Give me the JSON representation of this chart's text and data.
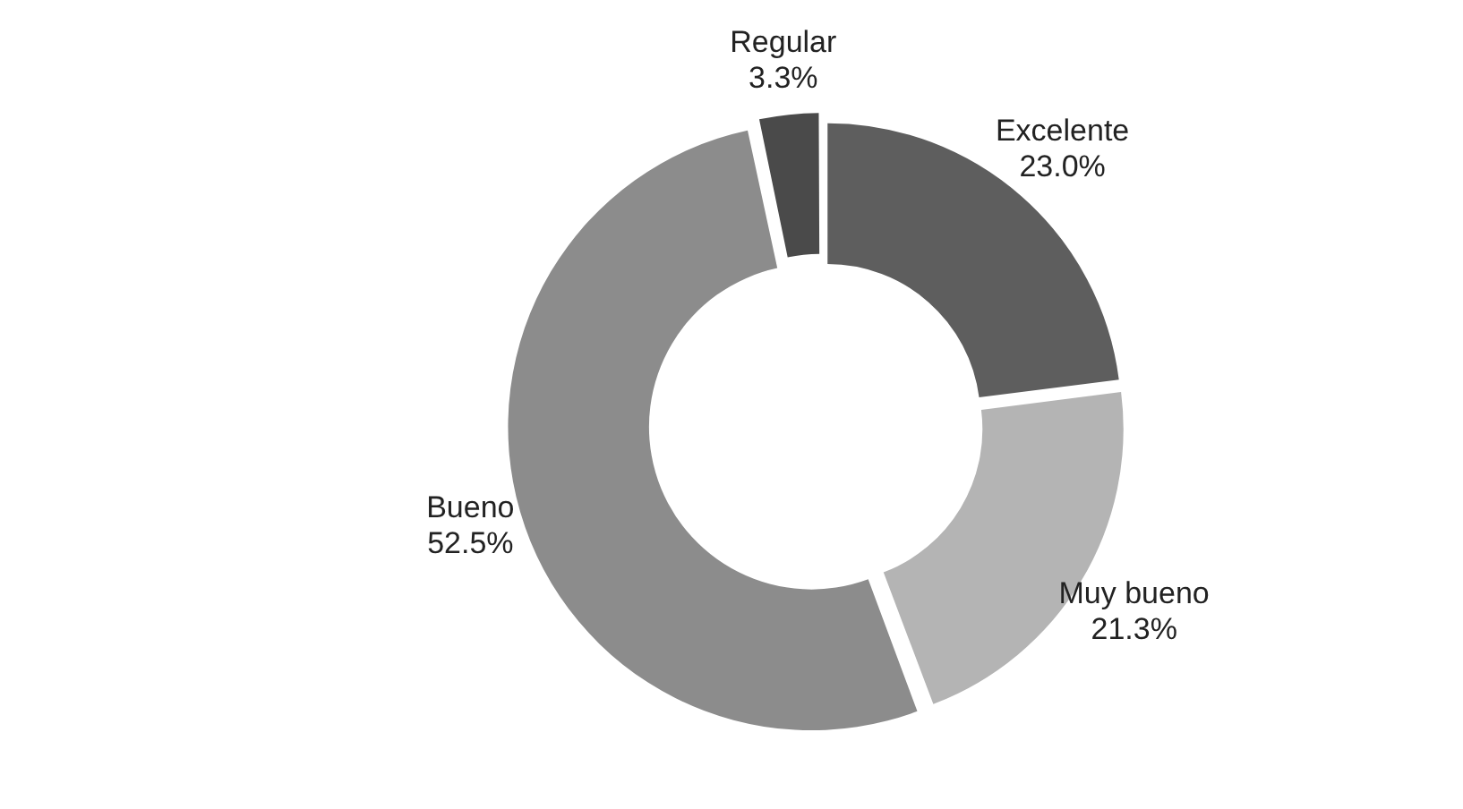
{
  "chart_data": {
    "type": "donut",
    "categories": [
      "Excelente",
      "Muy bueno",
      "Bueno",
      "Regular"
    ],
    "values": [
      23.0,
      21.3,
      52.5,
      3.3
    ],
    "colors": [
      "#5e5e5e",
      "#b4b4b4",
      "#8c8c8c",
      "#4a4a4a"
    ],
    "value_labels": [
      "23.0%",
      "21.3%",
      "52.5%",
      "3.3%"
    ],
    "legend": false
  }
}
